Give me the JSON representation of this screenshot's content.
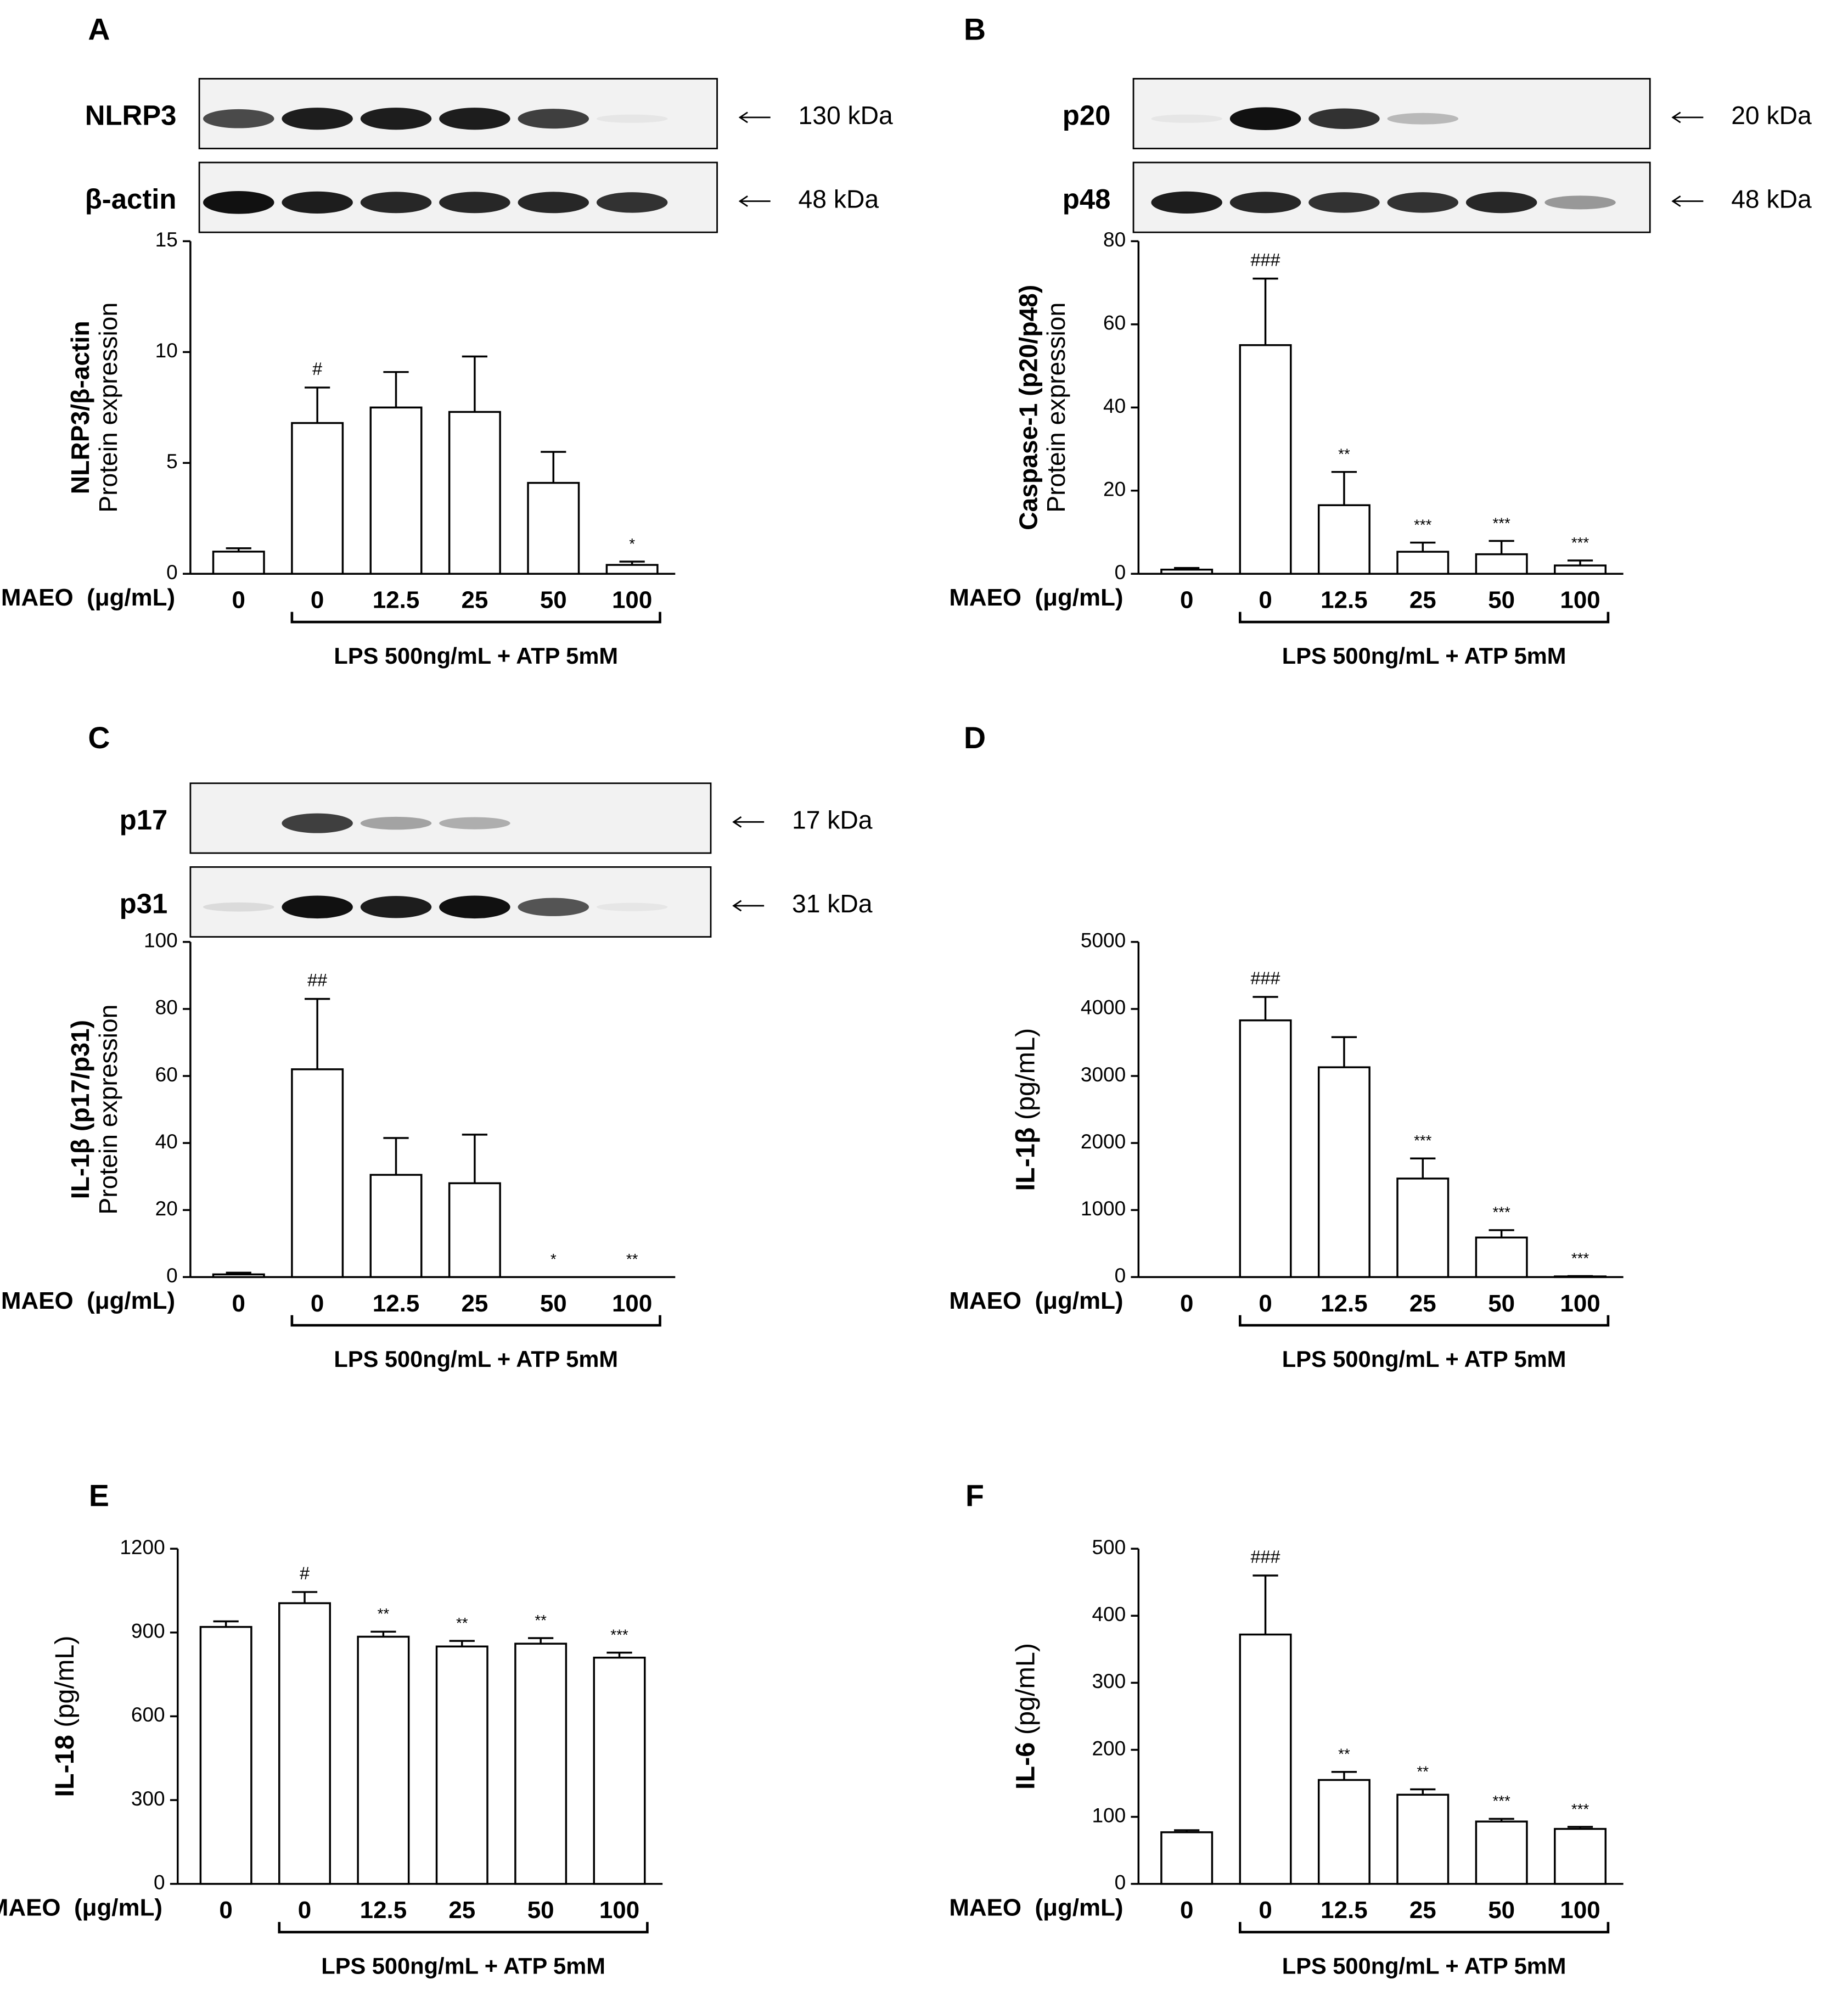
{
  "chart_data": [
    {
      "type": "bar",
      "panel": "A",
      "y_label_bold": "NLRP3/β-actin",
      "y_label": "Protein expression",
      "blots": [
        {
          "label": "NLRP3",
          "size": "130 kDa"
        },
        {
          "label": "β-actin",
          "size": "48 kDa"
        }
      ],
      "x_label": "MAEO  (μg/mL)",
      "group_label": "LPS 500ng/mL + ATP 5mM",
      "categories": [
        "0",
        "0",
        "12.5",
        "25",
        "50",
        "100"
      ],
      "values": [
        1.0,
        6.8,
        7.5,
        7.3,
        4.1,
        0.4
      ],
      "errors": [
        0.15,
        1.6,
        1.6,
        2.5,
        1.4,
        0.15
      ],
      "annotations": [
        null,
        "#",
        null,
        null,
        null,
        "*"
      ],
      "ylim": [
        0,
        15
      ],
      "yticks": [
        0,
        5,
        10,
        15
      ],
      "color": "#ffffff"
    },
    {
      "type": "bar",
      "panel": "B",
      "y_label_bold": "Caspase-1 (p20/p48)",
      "y_label": "Protein expression",
      "blots": [
        {
          "label": "p20",
          "size": "20 kDa"
        },
        {
          "label": "p48",
          "size": "48 kDa"
        }
      ],
      "x_label": "MAEO  (μg/mL)",
      "group_label": "LPS 500ng/mL + ATP 5mM",
      "categories": [
        "0",
        "0",
        "12.5",
        "25",
        "50",
        "100"
      ],
      "values": [
        1,
        55,
        16.5,
        5.3,
        4.7,
        2
      ],
      "errors": [
        0.4,
        16,
        8,
        2.2,
        3.2,
        1.2
      ],
      "annotations": [
        null,
        "###",
        "**",
        "***",
        "***",
        "***"
      ],
      "ylim": [
        0,
        80
      ],
      "yticks": [
        0,
        20,
        40,
        60,
        80
      ],
      "color": "#ffffff"
    },
    {
      "type": "bar",
      "panel": "C",
      "y_label_bold": "IL-1β (p17/p31)",
      "y_label": "Protein expression",
      "blots": [
        {
          "label": "p17",
          "size": "17 kDa"
        },
        {
          "label": "p31",
          "size": "31 kDa"
        }
      ],
      "x_label": "MAEO  (μg/mL)",
      "group_label": "LPS 500ng/mL + ATP 5mM",
      "categories": [
        "0",
        "0",
        "12.5",
        "25",
        "50",
        "100"
      ],
      "values": [
        0.8,
        62,
        30.5,
        28,
        0,
        0
      ],
      "errors": [
        0.5,
        21,
        11,
        14.5,
        0,
        0
      ],
      "annotations": [
        null,
        "##",
        null,
        null,
        "*",
        "**"
      ],
      "ylim": [
        0,
        100
      ],
      "yticks": [
        0,
        20,
        40,
        60,
        80,
        100
      ],
      "color": "#ffffff"
    },
    {
      "type": "bar",
      "panel": "D",
      "y_label_bold": "IL-1β",
      "y_label": "(pg/mL)",
      "x_label": "MAEO  (μg/mL)",
      "group_label": "LPS 500ng/mL + ATP 5mM",
      "categories": [
        "0",
        "0",
        "12.5",
        "25",
        "50",
        "100"
      ],
      "values": [
        0,
        3830,
        3130,
        1470,
        590,
        10
      ],
      "errors": [
        0,
        350,
        450,
        300,
        110,
        5
      ],
      "annotations": [
        null,
        "###",
        null,
        "***",
        "***",
        "***"
      ],
      "ylim": [
        0,
        5000
      ],
      "yticks": [
        0,
        1000,
        2000,
        3000,
        4000,
        5000
      ],
      "color": "#ffffff"
    },
    {
      "type": "bar",
      "panel": "E",
      "y_label_bold": "IL-18",
      "y_label": "(pg/mL)",
      "x_label": "MAEO  (μg/mL)",
      "group_label": "LPS 500ng/mL + ATP 5mM",
      "categories": [
        "0",
        "0",
        "12.5",
        "25",
        "50",
        "100"
      ],
      "values": [
        920,
        1005,
        885,
        850,
        860,
        810
      ],
      "errors": [
        20,
        40,
        18,
        20,
        20,
        18
      ],
      "annotations": [
        null,
        "#",
        "**",
        "**",
        "**",
        "***"
      ],
      "ylim": [
        0,
        1200
      ],
      "yticks": [
        0,
        300,
        600,
        900,
        1200
      ],
      "color": "#ffffff"
    },
    {
      "type": "bar",
      "panel": "F",
      "y_label_bold": "IL-6",
      "y_label": "(pg/mL)",
      "x_label": "MAEO  (μg/mL)",
      "group_label": "LPS 500ng/mL + ATP 5mM",
      "categories": [
        "0",
        "0",
        "12.5",
        "25",
        "50",
        "100"
      ],
      "values": [
        77,
        372,
        155,
        133,
        93,
        82
      ],
      "errors": [
        3,
        88,
        12,
        8,
        4,
        3
      ],
      "annotations": [
        null,
        "###",
        "**",
        "**",
        "***",
        "***"
      ],
      "ylim": [
        0,
        500
      ],
      "yticks": [
        0,
        100,
        200,
        300,
        400,
        500
      ],
      "color": "#ffffff"
    }
  ]
}
